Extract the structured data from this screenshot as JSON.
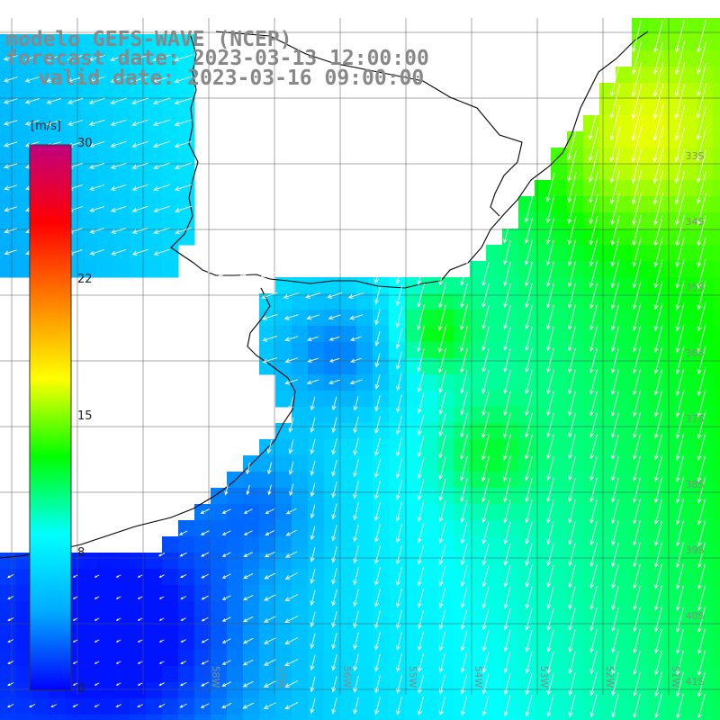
{
  "title": {
    "line1": "modelo GEFS-WAVE (NCEP)",
    "line2": "forecast date: 2023-03-13 12:00:00",
    "line3": "valid date: 2023-03-16 09:00:00"
  },
  "colorbar": {
    "unit": "[m/s]",
    "ticks": [
      "30",
      "22",
      "15",
      "8",
      "0"
    ],
    "min": 0,
    "max": 30,
    "colors": [
      "#0000ff",
      "#00aaff",
      "#00ffff",
      "#00ff00",
      "#ffff00",
      "#ff8000",
      "#ff0000",
      "#c0007f"
    ]
  },
  "map": {
    "land_color": "#ffffff",
    "grid_color": "#000000",
    "arrow_color": "#ffffff",
    "lat_labels": [
      "33S",
      "34S",
      "35S",
      "36S",
      "37S",
      "38S",
      "39S",
      "40S",
      "41S"
    ],
    "lon_labels": [
      "58W",
      "57W",
      "56W",
      "55W",
      "54W",
      "53W",
      "52W",
      "51W"
    ]
  }
}
